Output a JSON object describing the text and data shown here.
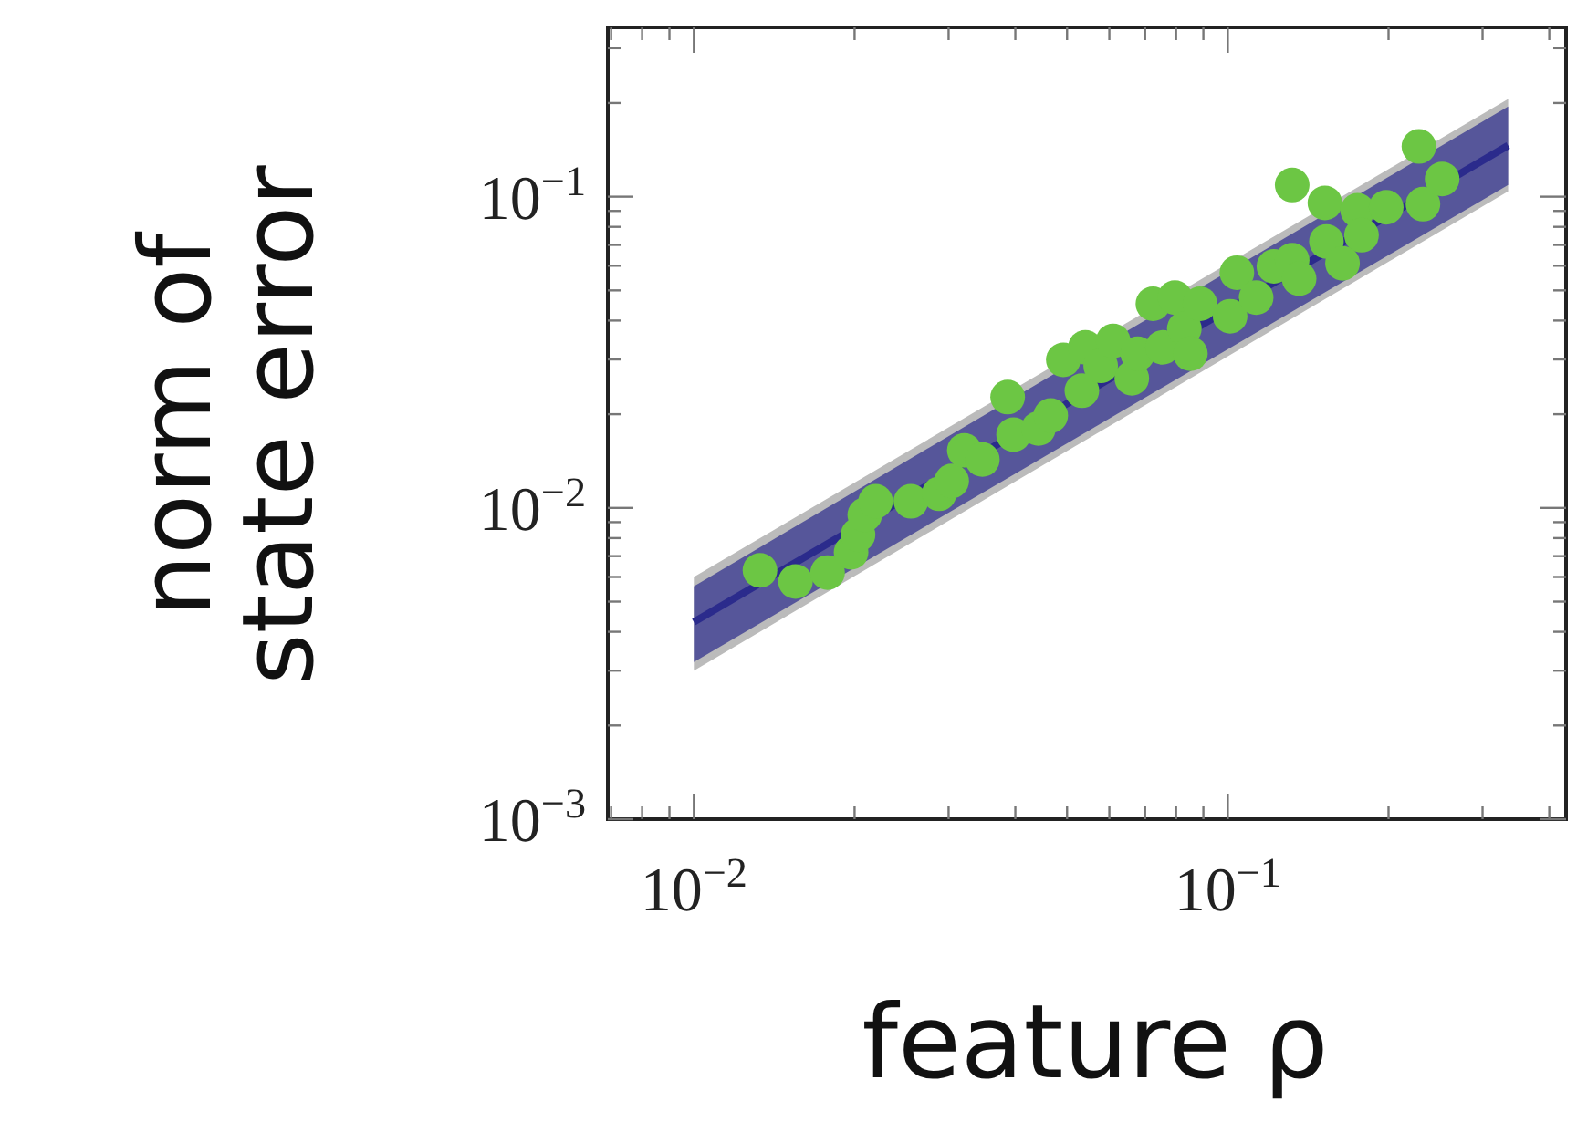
{
  "chart_data": {
    "type": "scatter",
    "xlabel": "feature ρ",
    "ylabel": "norm of\nstate error",
    "log": "xy",
    "grid": false,
    "legend": false,
    "marker": "circle",
    "xlim": [
      0.0069,
      0.43
    ],
    "ylim": [
      0.001,
      0.35
    ],
    "xticks": [
      {
        "value": 0.007,
        "label": null
      },
      {
        "value": 0.008,
        "label": null
      },
      {
        "value": 0.009,
        "label": null
      },
      {
        "value": 0.01,
        "label": "10$^{−2}$"
      },
      {
        "value": 0.02,
        "label": null
      },
      {
        "value": 0.03,
        "label": null
      },
      {
        "value": 0.04,
        "label": null
      },
      {
        "value": 0.05,
        "label": null
      },
      {
        "value": 0.06,
        "label": null
      },
      {
        "value": 0.07,
        "label": null
      },
      {
        "value": 0.08,
        "label": null
      },
      {
        "value": 0.09,
        "label": null
      },
      {
        "value": 0.1,
        "label": "10$^{−1}$"
      },
      {
        "value": 0.2,
        "label": null
      },
      {
        "value": 0.3,
        "label": null
      },
      {
        "value": 0.4,
        "label": null
      }
    ],
    "yticks": [
      {
        "value": 0.001,
        "label": "10$^{−3}$"
      },
      {
        "value": 0.002,
        "label": null
      },
      {
        "value": 0.003,
        "label": null
      },
      {
        "value": 0.004,
        "label": null
      },
      {
        "value": 0.005,
        "label": null
      },
      {
        "value": 0.006,
        "label": null
      },
      {
        "value": 0.007,
        "label": null
      },
      {
        "value": 0.008,
        "label": null
      },
      {
        "value": 0.009,
        "label": null
      },
      {
        "value": 0.01,
        "label": "10$^{−2}$"
      },
      {
        "value": 0.02,
        "label": null
      },
      {
        "value": 0.03,
        "label": null
      },
      {
        "value": 0.04,
        "label": null
      },
      {
        "value": 0.05,
        "label": null
      },
      {
        "value": 0.06,
        "label": null
      },
      {
        "value": 0.07,
        "label": null
      },
      {
        "value": 0.08,
        "label": null
      },
      {
        "value": 0.09,
        "label": null
      },
      {
        "value": 0.1,
        "label": "10$^{−1}$"
      },
      {
        "value": 0.2,
        "label": null
      },
      {
        "value": 0.3,
        "label": null
      }
    ],
    "series": [
      {
        "type": "line",
        "color": "#bbbbbb",
        "marker": "none",
        "x": [
          0.01,
          0.335
        ],
        "values": [
          null,
          null
        ],
        "lower": [
          0.003,
          0.104
        ],
        "upper": [
          0.006,
          0.206
        ]
      },
      {
        "type": "line",
        "color": "#2b2b8c",
        "marker": "none",
        "x": [
          0.01,
          0.335
        ],
        "values": [
          0.0043,
          0.146
        ],
        "lower": [
          0.0032,
          0.109
        ],
        "upper": [
          0.0056,
          0.195
        ]
      },
      {
        "color": "#6cc644",
        "x": [
          0.0133,
          0.0155,
          0.0178,
          0.0197,
          0.0203,
          0.0209,
          0.0219,
          0.0255,
          0.0288,
          0.0304,
          0.0321,
          0.0347,
          0.0387,
          0.0397,
          0.0442,
          0.0466,
          0.0492,
          0.0541,
          0.0533,
          0.0578,
          0.061,
          0.0661,
          0.0678,
          0.0724,
          0.0755,
          0.0796,
          0.0829,
          0.0851,
          0.0887,
          0.101,
          0.104,
          0.113,
          0.122,
          0.132,
          0.136,
          0.132,
          0.152,
          0.153,
          0.164,
          0.175,
          0.178,
          0.198,
          0.228,
          0.232,
          0.252
        ],
        "values": [
          0.0063,
          0.0058,
          0.0062,
          0.0072,
          0.0082,
          0.0095,
          0.0105,
          0.0105,
          0.0111,
          0.0122,
          0.0153,
          0.0143,
          0.0227,
          0.0172,
          0.018,
          0.0198,
          0.0299,
          0.0328,
          0.0238,
          0.0286,
          0.0344,
          0.0261,
          0.0313,
          0.0453,
          0.0328,
          0.0474,
          0.0377,
          0.0313,
          0.0453,
          0.0413,
          0.057,
          0.0474,
          0.0597,
          0.0625,
          0.0545,
          0.109,
          0.0955,
          0.0718,
          0.0611,
          0.0904,
          0.0752,
          0.0925,
          0.145,
          0.0946,
          0.114
        ]
      }
    ]
  }
}
